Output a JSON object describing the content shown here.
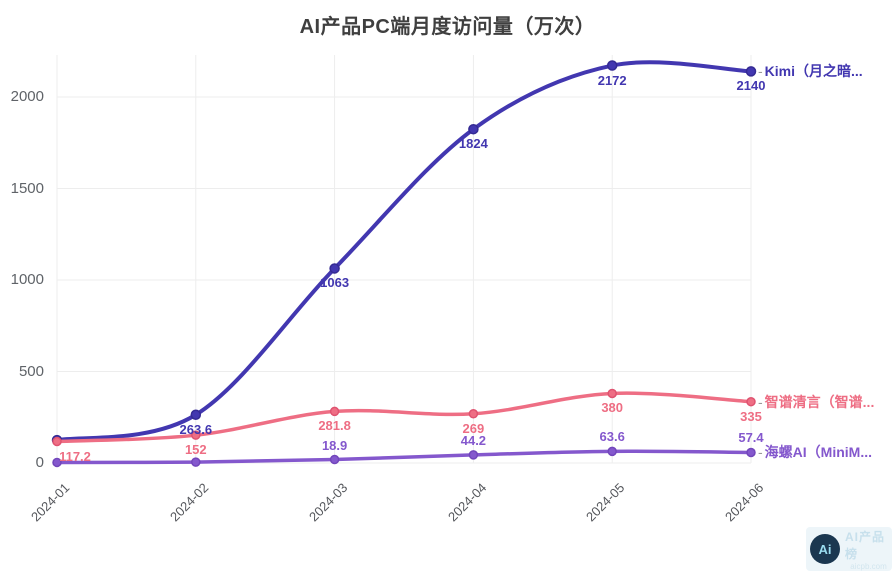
{
  "title": "AI产品PC端月度访问量（万次）",
  "watermark": {
    "logo_text": "Ai",
    "line1": "AI产品榜",
    "line2": "aicpb.com"
  },
  "chart_data": {
    "type": "line",
    "title": "AI产品PC端月度访问量（万次）",
    "x": [
      "2024-01",
      "2024-02",
      "2024-03",
      "2024-04",
      "2024-05",
      "2024-06"
    ],
    "series": [
      {
        "name": "Kimi（月之暗...",
        "color": "#4237b0",
        "point_stroke": "#342a93",
        "line_width": 4,
        "values": [
          125,
          263.6,
          1063,
          1824,
          2172,
          2140
        ],
        "labels": [
          null,
          "263.6",
          "1063",
          "1824",
          "2172",
          "2140"
        ],
        "label_side": "below"
      },
      {
        "name": "智谱清言（智谱...",
        "color": "#ee6e84",
        "point_stroke": "#df5370",
        "line_width": 3.5,
        "values": [
          117.2,
          152,
          281.8,
          269,
          380,
          335
        ],
        "labels": [
          {
            "text": "117.2",
            "dx": 18
          },
          "152",
          "281.8",
          "269",
          "380",
          "335"
        ],
        "label_side": "below"
      },
      {
        "name": "海螺AI（MiniM...",
        "color": "#8458cd",
        "point_stroke": "#7246bb",
        "line_width": 3.5,
        "values": [
          3,
          5,
          18.9,
          44.2,
          63.6,
          57.4
        ],
        "labels": [
          null,
          null,
          "18.9",
          "44.2",
          "63.6",
          "57.4"
        ],
        "label_side": "above"
      }
    ],
    "y_ticks": [
      0,
      500,
      1000,
      1500,
      2000
    ],
    "ylim": [
      0,
      2200
    ],
    "xlabel": "",
    "ylabel": "",
    "smooth": true,
    "grid": true,
    "grid_color": "#ededed",
    "axis_label_color": "#5f6368",
    "legend_position": "line-end"
  }
}
